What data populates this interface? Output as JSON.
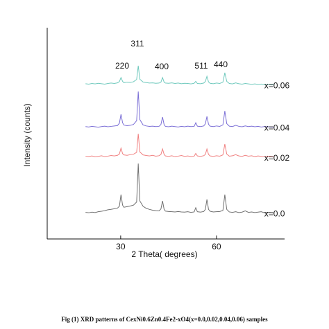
{
  "chart_data": {
    "type": "line",
    "xlabel": "2 Theta( degrees)",
    "ylabel": "Intensity (counts)",
    "caption": "Fig (1) XRD patterns of CexNi0.6Zn0.4Fe2-xO4(x=0.0,0.02,0.04,0.06) samples",
    "annotations": [
      "220",
      "311",
      "400",
      "511",
      "440"
    ],
    "xlim": [
      7,
      80
    ],
    "ylim": [
      0,
      100
    ],
    "xticks": [
      30,
      60
    ],
    "x": [
      19,
      20,
      21,
      22,
      23,
      24,
      25,
      26,
      27,
      28,
      29,
      29.6,
      30.1,
      30.6,
      31,
      32,
      33,
      34,
      35,
      35.5,
      36,
      37,
      38,
      39,
      40,
      41,
      42,
      42.6,
      43.1,
      43.6,
      44,
      45,
      46,
      47,
      48,
      49,
      50,
      51,
      52,
      53,
      53.5,
      54,
      55,
      56,
      56.5,
      57,
      57.5,
      58,
      59,
      60,
      61,
      62,
      62.6,
      63.2,
      64,
      65,
      66,
      67,
      68,
      69,
      70,
      71,
      72,
      73,
      74,
      75,
      76,
      77,
      78
    ],
    "series": [
      {
        "name": "x=0.0",
        "color": "#707070",
        "values": [
          12.6,
          12.4,
          12.7,
          12.5,
          12.9,
          13.1,
          13.4,
          13.8,
          14.0,
          14.3,
          14.6,
          15.5,
          21,
          16,
          15.0,
          15.3,
          15.6,
          16.0,
          17.5,
          35.7,
          18,
          15.5,
          14.5,
          14.0,
          13.6,
          13.4,
          13.3,
          14.2,
          18,
          14,
          13.2,
          13.0,
          12.9,
          12.8,
          13,
          12.8,
          12.7,
          12.9,
          12.6,
          12.8,
          14.8,
          12.9,
          12.7,
          13,
          14,
          18.7,
          14,
          13.1,
          12.8,
          12.9,
          13,
          13.5,
          21,
          14,
          12.8,
          12.6,
          12.9,
          12.5,
          12.7,
          13.3,
          12.6,
          12.8,
          12.5,
          12.7,
          12.9,
          12.4,
          12.6,
          12.5,
          12.3
        ]
      },
      {
        "name": "x=0.02",
        "color": "#f08080",
        "values": [
          39.2,
          39.0,
          39.3,
          38.9,
          39.1,
          39.4,
          39.0,
          39.2,
          39.5,
          39.3,
          39.6,
          40.2,
          43,
          40.4,
          39.8,
          39.6,
          39.9,
          40.1,
          41,
          49.8,
          41.2,
          39.8,
          39.5,
          39.3,
          39.6,
          39.2,
          39.4,
          40,
          42.6,
          40,
          39.3,
          39.1,
          39.4,
          39,
          39.2,
          39.5,
          39.1,
          39.3,
          39,
          39.2,
          40.5,
          39.3,
          39.1,
          39.4,
          40,
          42.6,
          40,
          39.3,
          39.1,
          39.4,
          39.2,
          39.8,
          44.9,
          40.2,
          39.2,
          39.4,
          39.9,
          39.3,
          39.1,
          39.6,
          39.2,
          39.4,
          39.0,
          39.3,
          39.1,
          38.9,
          39.2,
          39.0,
          38.8
        ]
      },
      {
        "name": "x=0.04",
        "color": "#7b6fd6",
        "values": [
          53.2,
          53.0,
          53.3,
          53.1,
          52.9,
          53.2,
          53.4,
          53.1,
          53.3,
          53.5,
          53.7,
          54.8,
          59,
          55,
          53.9,
          53.6,
          53.8,
          54.2,
          56,
          69.8,
          56.5,
          54,
          53.5,
          53.3,
          53.4,
          53.2,
          53.3,
          54.2,
          57.7,
          54.1,
          53.3,
          53.1,
          53.4,
          53.2,
          53,
          53.3,
          53.1,
          53.4,
          53.2,
          53.3,
          55,
          53.4,
          53.2,
          53.5,
          54.5,
          58,
          54.3,
          53.4,
          53.2,
          53.5,
          53.3,
          54,
          60.6,
          54.6,
          53.4,
          53.2,
          53.8,
          53.3,
          53.1,
          53.5,
          53.2,
          53.4,
          53.1,
          53.3,
          53,
          53.2,
          53.1,
          52.9,
          53
        ]
      },
      {
        "name": "x=0.06",
        "color": "#6fc9bd",
        "values": [
          73.5,
          73.3,
          73.6,
          73.4,
          73.7,
          73.5,
          73.3,
          73.6,
          73.8,
          73.6,
          73.9,
          74.5,
          76.4,
          74.6,
          74,
          74.2,
          74.1,
          74.4,
          75.5,
          82,
          75.6,
          74.3,
          74,
          73.8,
          73.9,
          73.7,
          73.8,
          74.2,
          76.4,
          74.2,
          73.8,
          73.7,
          73.9,
          73.6,
          73.8,
          73.5,
          73.7,
          73.6,
          73.4,
          73.7,
          74.6,
          73.6,
          73.5,
          73.8,
          74.5,
          77,
          74.3,
          73.7,
          73.5,
          73.8,
          73.6,
          74.2,
          78.7,
          74.6,
          73.6,
          73.4,
          73.9,
          73.5,
          73.3,
          73.6,
          73.4,
          73.2,
          73.4,
          73.1,
          73.3,
          73,
          73.2,
          72.9,
          73
        ]
      }
    ]
  }
}
